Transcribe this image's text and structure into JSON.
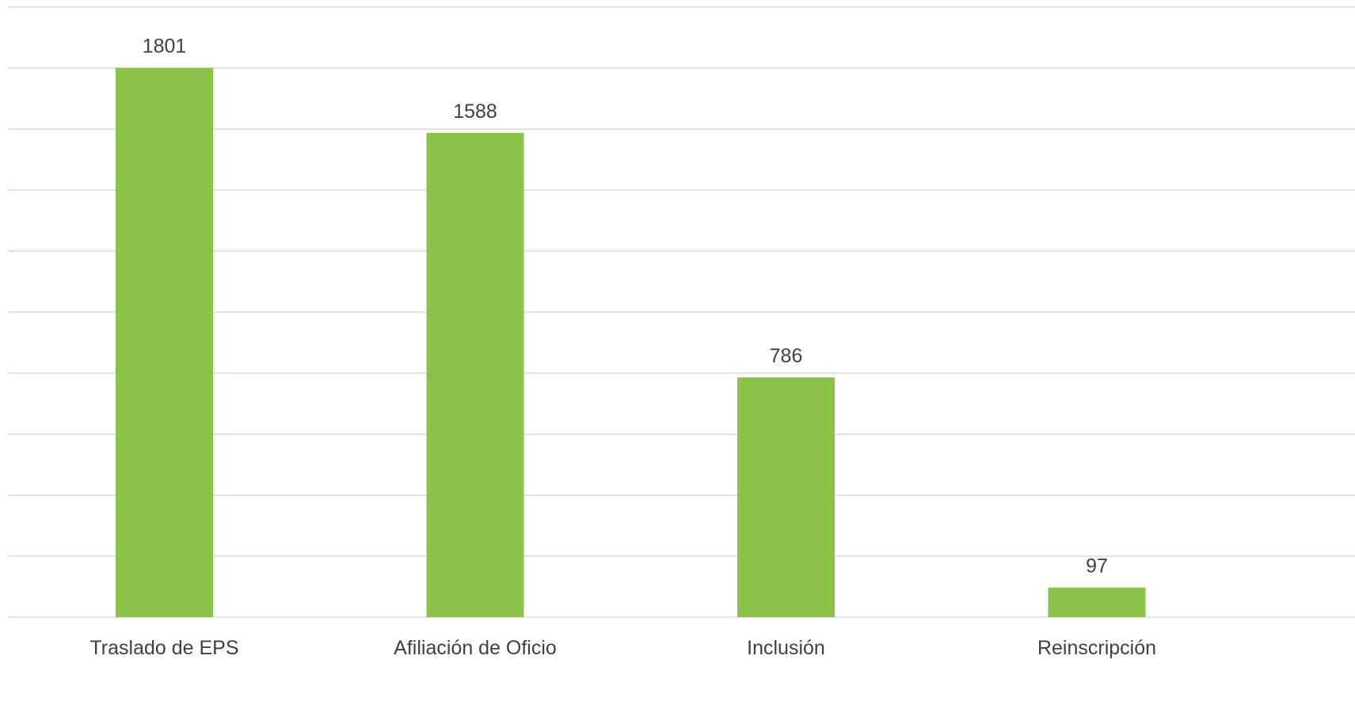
{
  "chart_data": {
    "type": "bar",
    "categories": [
      "Traslado de EPS",
      "Afiliación de Oficio",
      "Inclusión",
      "Reinscripción"
    ],
    "values": [
      1801,
      1588,
      786,
      97
    ],
    "data_labels": [
      "1801",
      "1588",
      "786",
      "97"
    ],
    "title": "",
    "xlabel": "",
    "ylabel": "",
    "ylim": [
      0,
      2000
    ],
    "y_gridline_step": 200,
    "grid": true,
    "legend": "none",
    "bar_color": "#8BC34A",
    "gridline_color": "#d9d9d9",
    "text_color": "#404040"
  }
}
